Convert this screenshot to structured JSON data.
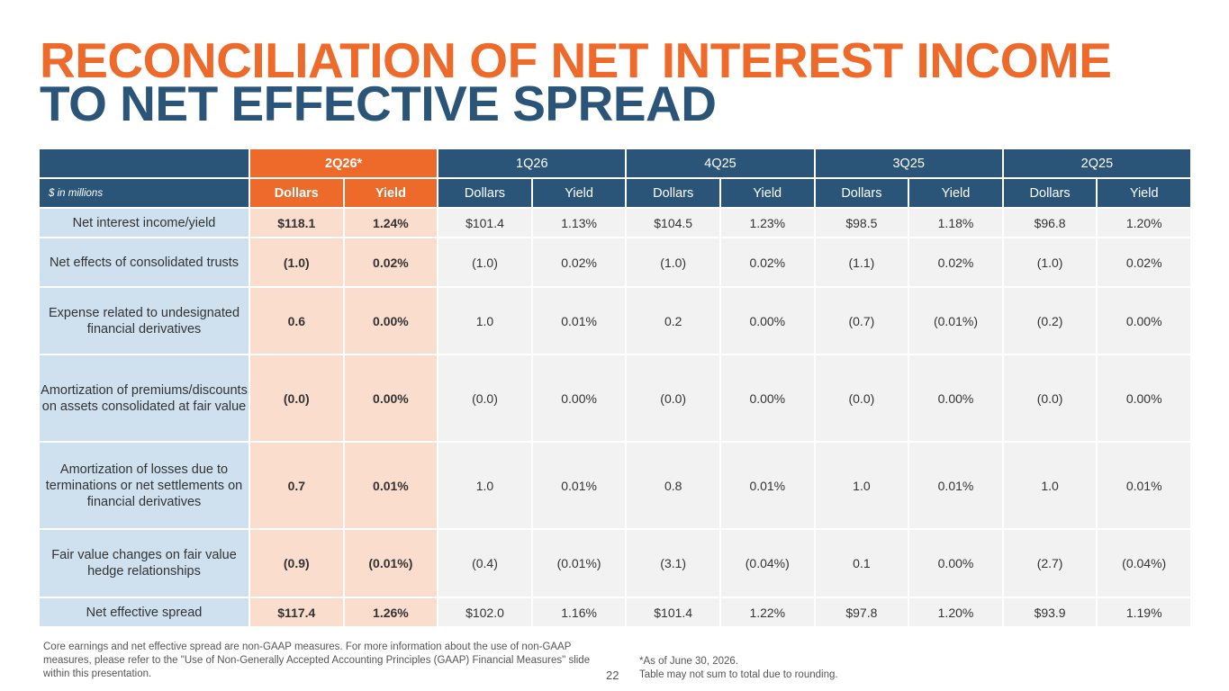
{
  "title": {
    "line1": "RECONCILIATION OF NET INTEREST INCOME",
    "line2": "TO NET EFFECTIVE SPREAD"
  },
  "colors": {
    "orange": "#ee6a2a",
    "navy": "#2a5478",
    "label_bg": "#cfe0ee",
    "current_bg": "#fbddce",
    "cell_bg": "#f2f2f2"
  },
  "table": {
    "unit_label": "$ in millions",
    "periods": [
      "2Q26*",
      "1Q26",
      "4Q25",
      "3Q25",
      "2Q25"
    ],
    "subheaders": [
      "Dollars",
      "Yield",
      "Dollars",
      "Yield",
      "Dollars",
      "Yield",
      "Dollars",
      "Yield",
      "Dollars",
      "Yield"
    ],
    "rows": [
      {
        "label": "Net interest income/yield",
        "values": [
          "$118.1",
          "1.24%",
          "$101.4",
          "1.13%",
          "$104.5",
          "1.23%",
          "$98.5",
          "1.18%",
          "$96.8",
          "1.20%"
        ]
      },
      {
        "label": "Net effects of consolidated trusts",
        "values": [
          "(1.0)",
          "0.02%",
          "(1.0)",
          "0.02%",
          "(1.0)",
          "0.02%",
          "(1.1)",
          "0.02%",
          "(1.0)",
          "0.02%"
        ]
      },
      {
        "label": "Expense related to undesignated financial derivatives",
        "values": [
          "0.6",
          "0.00%",
          "1.0",
          "0.01%",
          "0.2",
          "0.00%",
          "(0.7)",
          "(0.01%)",
          "(0.2)",
          "0.00%"
        ]
      },
      {
        "label": "Amortization of premiums/discounts on assets consolidated at fair value",
        "values": [
          "(0.0)",
          "0.00%",
          "(0.0)",
          "0.00%",
          "(0.0)",
          "0.00%",
          "(0.0)",
          "0.00%",
          "(0.0)",
          "0.00%"
        ]
      },
      {
        "label": "Amortization of losses due to terminations or net settlements on financial derivatives",
        "values": [
          "0.7",
          "0.01%",
          "1.0",
          "0.01%",
          "0.8",
          "0.01%",
          "1.0",
          "0.01%",
          "1.0",
          "0.01%"
        ]
      },
      {
        "label": "Fair value changes on fair value hedge relationships",
        "values": [
          "(0.9)",
          "(0.01%)",
          "(0.4)",
          "(0.01%)",
          "(3.1)",
          "(0.04%)",
          "0.1",
          "0.00%",
          "(2.7)",
          "(0.04%)"
        ]
      },
      {
        "label": "Net effective spread",
        "values": [
          "$117.4",
          "1.26%",
          "$102.0",
          "1.16%",
          "$101.4",
          "1.22%",
          "$97.8",
          "1.20%",
          "$93.9",
          "1.19%"
        ]
      }
    ]
  },
  "footnotes": {
    "left": "Core earnings and net effective spread are non-GAAP measures. For more information about the use of non-GAAP measures, please refer to the \"Use of Non-Generally Accepted Accounting Principles (GAAP) Financial Measures\" slide within this presentation.",
    "right_line1": "*As of June 30, 2026.",
    "right_line2": "Table may not sum to total due to rounding."
  },
  "page_number": "22"
}
